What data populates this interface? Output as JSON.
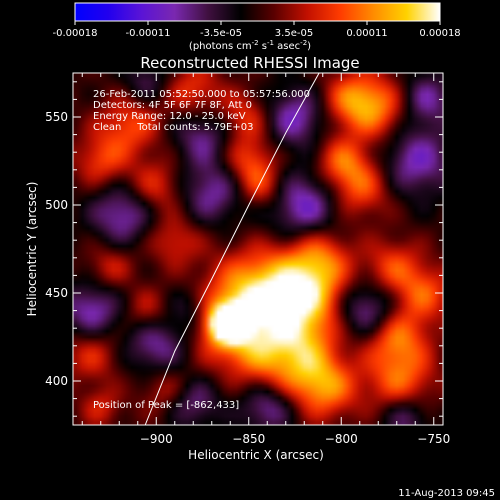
{
  "colorbar": {
    "tick_labels": [
      "-0.00018",
      "-0.00011",
      "-3.5e-05",
      "3.5e-05",
      "0.00011",
      "0.00018"
    ],
    "range": [
      -0.00018,
      0.00018
    ],
    "units_text": "(photons cm",
    "units_sup1": "-2",
    "units_mid": " s",
    "units_sup2": "-1",
    "units_end": " asec",
    "units_sup3": "-2",
    "units_close": ")"
  },
  "chart_data": {
    "type": "heatmap",
    "title": "Reconstructed RHESSI Image",
    "xlabel": "Heliocentric X (arcsec)",
    "ylabel": "Heliocentric Y (arcsec)",
    "xlim": [
      -945,
      -745
    ],
    "ylim": [
      375,
      575
    ],
    "x_ticks": [
      -900,
      -850,
      -800,
      -750
    ],
    "y_ticks": [
      400,
      450,
      500,
      550
    ],
    "x_tick_labels": [
      "−900",
      "−850",
      "−800",
      "−750"
    ],
    "y_tick_labels": [
      "400",
      "450",
      "500",
      "550"
    ],
    "annotations": [
      "26-Feb-2011 05:52:50.000 to 05:57:56.000",
      "Detectors: 4F 5F 6F 7F 8F, Att 0",
      "Energy Range: 12.0 - 25.0 keV",
      "Clean     Total counts: 5.79E+03"
    ],
    "peak_label": "Position of Peak = [-862,433]",
    "peak": [
      -862,
      433
    ],
    "limb_curve": [
      [
        -906,
        375
      ],
      [
        -890,
        417
      ],
      [
        -870,
        458
      ],
      [
        -850,
        500
      ],
      [
        -830,
        541
      ],
      [
        -812,
        575
      ]
    ],
    "colormap": [
      "#0000ff",
      "#2200ee",
      "#5a14d6",
      "#7a28b0",
      "#401040",
      "#000000",
      "#5a0000",
      "#c21000",
      "#ff3c00",
      "#ff8c00",
      "#ffd200",
      "#ffffff"
    ],
    "blobs": [
      {
        "x": -862,
        "y": 433,
        "v": 1.0,
        "r": 7
      },
      {
        "x": -860,
        "y": 432,
        "v": 0.55,
        "r": 16
      },
      {
        "x": -848,
        "y": 448,
        "v": 0.5,
        "r": 18
      },
      {
        "x": -835,
        "y": 455,
        "v": 0.45,
        "r": 14
      },
      {
        "x": -812,
        "y": 470,
        "v": 0.55,
        "r": 12
      },
      {
        "x": -815,
        "y": 450,
        "v": 0.5,
        "r": 12
      },
      {
        "x": -820,
        "y": 430,
        "v": 0.45,
        "r": 12
      },
      {
        "x": -840,
        "y": 415,
        "v": 0.45,
        "r": 14
      },
      {
        "x": -818,
        "y": 408,
        "v": 0.45,
        "r": 13
      },
      {
        "x": -808,
        "y": 395,
        "v": 0.5,
        "r": 12
      },
      {
        "x": -768,
        "y": 400,
        "v": 0.5,
        "r": 13
      },
      {
        "x": -770,
        "y": 425,
        "v": 0.55,
        "r": 12
      },
      {
        "x": -755,
        "y": 450,
        "v": 0.45,
        "r": 11
      },
      {
        "x": -772,
        "y": 465,
        "v": 0.42,
        "r": 11
      },
      {
        "x": -790,
        "y": 510,
        "v": 0.5,
        "r": 12
      },
      {
        "x": -800,
        "y": 525,
        "v": 0.45,
        "r": 10
      },
      {
        "x": -780,
        "y": 555,
        "v": 0.55,
        "r": 13
      },
      {
        "x": -795,
        "y": 560,
        "v": 0.45,
        "r": 11
      },
      {
        "x": -850,
        "y": 525,
        "v": 0.45,
        "r": 10
      },
      {
        "x": -843,
        "y": 510,
        "v": 0.4,
        "r": 9
      },
      {
        "x": -852,
        "y": 550,
        "v": 0.4,
        "r": 10
      },
      {
        "x": -880,
        "y": 565,
        "v": 0.4,
        "r": 11
      },
      {
        "x": -915,
        "y": 545,
        "v": 0.45,
        "r": 12
      },
      {
        "x": -930,
        "y": 525,
        "v": 0.4,
        "r": 10
      },
      {
        "x": -900,
        "y": 510,
        "v": 0.4,
        "r": 11
      },
      {
        "x": -890,
        "y": 480,
        "v": 0.35,
        "r": 10
      },
      {
        "x": -925,
        "y": 465,
        "v": 0.3,
        "r": 9
      },
      {
        "x": -905,
        "y": 440,
        "v": 0.3,
        "r": 9
      },
      {
        "x": -935,
        "y": 415,
        "v": 0.35,
        "r": 11
      },
      {
        "x": -895,
        "y": 395,
        "v": 0.3,
        "r": 10
      },
      {
        "x": -930,
        "y": 385,
        "v": 0.3,
        "r": 8
      },
      {
        "x": -900,
        "y": 420,
        "v": -0.45,
        "r": 12
      },
      {
        "x": -880,
        "y": 440,
        "v": -0.35,
        "r": 10
      },
      {
        "x": -935,
        "y": 440,
        "v": -0.5,
        "r": 11
      },
      {
        "x": -918,
        "y": 495,
        "v": -0.5,
        "r": 12
      },
      {
        "x": -870,
        "y": 508,
        "v": -0.45,
        "r": 13
      },
      {
        "x": -875,
        "y": 540,
        "v": -0.4,
        "r": 11
      },
      {
        "x": -820,
        "y": 500,
        "v": -0.55,
        "r": 14
      },
      {
        "x": -825,
        "y": 550,
        "v": -0.5,
        "r": 12
      },
      {
        "x": -760,
        "y": 525,
        "v": -0.5,
        "r": 14
      },
      {
        "x": -755,
        "y": 560,
        "v": -0.45,
        "r": 11
      },
      {
        "x": -785,
        "y": 440,
        "v": -0.5,
        "r": 11
      },
      {
        "x": -765,
        "y": 380,
        "v": -0.4,
        "r": 9
      },
      {
        "x": -840,
        "y": 385,
        "v": -0.45,
        "r": 10
      },
      {
        "x": -880,
        "y": 388,
        "v": -0.4,
        "r": 10
      },
      {
        "x": -905,
        "y": 570,
        "v": -0.3,
        "r": 9
      }
    ]
  },
  "footer": {
    "date": "11-Aug-2013 09:45"
  }
}
